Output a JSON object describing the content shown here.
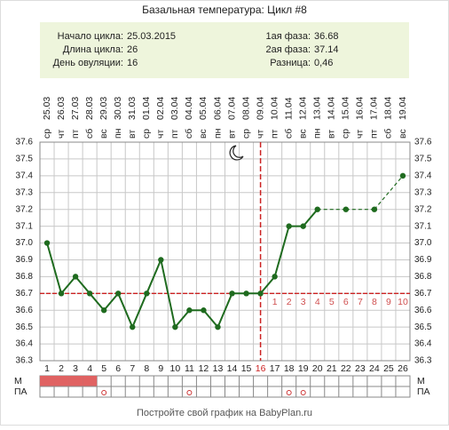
{
  "title": "Базальная температура: Цикл #8",
  "info": {
    "left": [
      {
        "label": "Начало цикла:",
        "value": "25.03.2015"
      },
      {
        "label": "Длина цикла:",
        "value": 26
      },
      {
        "label": "День овуляции:",
        "value": 16
      }
    ],
    "right": [
      {
        "label": "1ая фаза:",
        "value": 36.68
      },
      {
        "label": "2ая фаза:",
        "value": 37.14
      },
      {
        "label": "Разница:",
        "value": "0,46"
      }
    ]
  },
  "chart_data": {
    "type": "line",
    "categories": [
      1,
      2,
      3,
      4,
      5,
      6,
      7,
      8,
      9,
      10,
      11,
      12,
      13,
      14,
      15,
      16,
      17,
      18,
      19,
      20,
      21,
      22,
      23,
      24,
      25,
      26
    ],
    "dates": [
      "25.03",
      "26.03",
      "27.03",
      "28.03",
      "29.03",
      "30.03",
      "31.03",
      "01.04",
      "02.04",
      "03.04",
      "04.04",
      "05.04",
      "06.04",
      "07.04",
      "08.04",
      "09.04",
      "10.04",
      "11.04",
      "12.04",
      "13.04",
      "14.04",
      "15.04",
      "16.04",
      "17.04",
      "18.04",
      "19.04"
    ],
    "weekdays": [
      "ср",
      "чт",
      "пт",
      "сб",
      "вс",
      "пн",
      "вт",
      "ср",
      "чт",
      "пт",
      "сб",
      "вс",
      "пн",
      "вт",
      "ср",
      "чт",
      "пт",
      "сб",
      "вс",
      "пн",
      "вт",
      "ср",
      "чт",
      "пт",
      "сб",
      "вс"
    ],
    "series": [
      {
        "name": "Температура",
        "color": "#1f6b1f",
        "values": [
          37.0,
          36.7,
          36.8,
          36.7,
          36.6,
          36.7,
          36.5,
          36.7,
          36.9,
          36.5,
          36.6,
          36.6,
          36.5,
          36.7,
          36.7,
          36.7,
          36.8,
          37.1,
          37.1,
          37.2,
          null,
          37.2,
          null,
          37.2,
          null,
          37.4
        ]
      }
    ],
    "ylim": [
      36.3,
      37.6
    ],
    "yticks": [
      36.3,
      36.4,
      36.5,
      36.6,
      36.7,
      36.8,
      36.9,
      {
        "value": 37.0,
        "label": "37.0"
      },
      37.1,
      37.2,
      37.3,
      37.4,
      37.5,
      37.6
    ],
    "grid": true,
    "coverline": 36.7,
    "coverline_color": "#cc2222",
    "ovulation_day": 16,
    "luteal_day_labels": [
      1,
      2,
      3,
      4,
      5,
      6,
      7,
      8,
      9,
      10
    ],
    "rows": [
      {
        "label": "М",
        "days": [
          1,
          2,
          3,
          4
        ],
        "color": "#e06262"
      },
      {
        "label": "ПА",
        "days": [
          5,
          11,
          18,
          19
        ],
        "color": "#cc3333"
      }
    ]
  },
  "footer": "Постройте свой график на BabyPlan.ru"
}
